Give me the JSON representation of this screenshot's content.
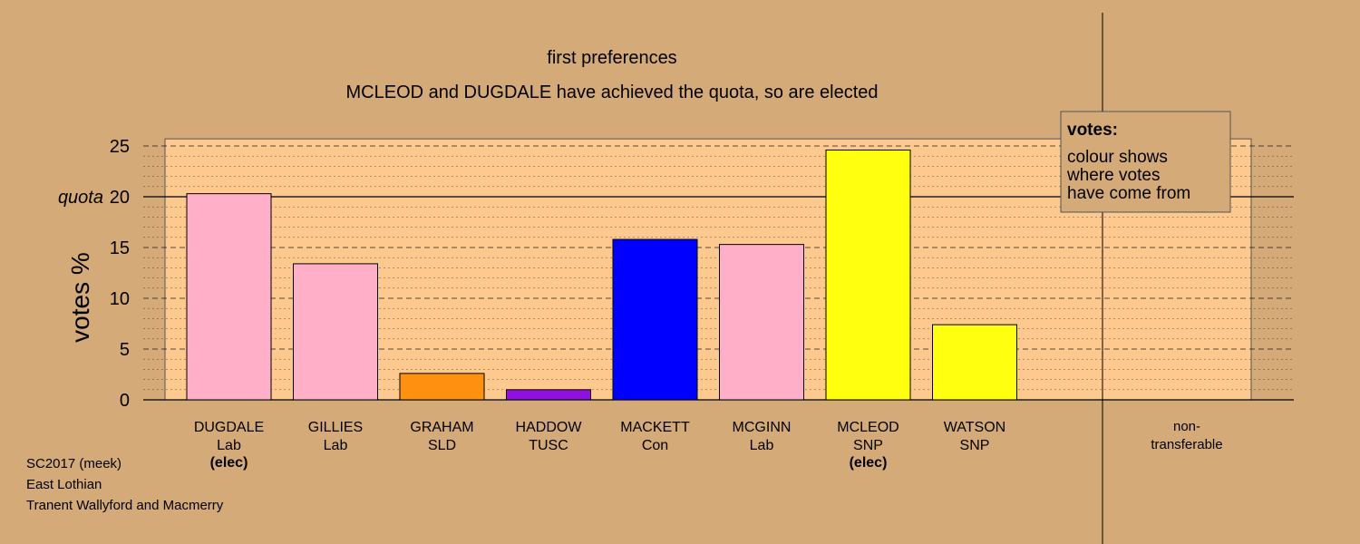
{
  "chart_data": {
    "type": "bar",
    "title": "first preferences",
    "subtitle": "MCLEOD and DUGDALE have achieved the quota, so are elected",
    "ylabel": "votes %",
    "quota_label": "quota",
    "quota": 20,
    "ylim": [
      0,
      25.7
    ],
    "yticks": [
      0,
      5,
      10,
      15,
      20,
      25
    ],
    "grid": true,
    "categories": [
      {
        "name": "DUGDALE",
        "party": "Lab",
        "note": "(elec)",
        "value": 20.3,
        "color": "#ffb0c8"
      },
      {
        "name": "GILLIES",
        "party": "Lab",
        "note": "",
        "value": 13.4,
        "color": "#ffb0c8"
      },
      {
        "name": "GRAHAM",
        "party": "SLD",
        "note": "",
        "value": 2.6,
        "color": "#ff9010"
      },
      {
        "name": "HADDOW",
        "party": "TUSC",
        "note": "",
        "value": 1.0,
        "color": "#9010e0"
      },
      {
        "name": "MACKETT",
        "party": "Con",
        "note": "",
        "value": 15.8,
        "color": "#0000ff"
      },
      {
        "name": "MCGINN",
        "party": "Lab",
        "note": "",
        "value": 15.3,
        "color": "#ffb0c8"
      },
      {
        "name": "MCLEOD",
        "party": "SNP",
        "note": "(elec)",
        "value": 24.6,
        "color": "#ffff10"
      },
      {
        "name": "WATSON",
        "party": "SNP",
        "note": "",
        "value": 7.4,
        "color": "#ffff10"
      }
    ],
    "nontransferable": {
      "line1": "non-",
      "line2": "transferable",
      "value": 0
    },
    "legend": {
      "title": "votes:",
      "lines": [
        "colour shows",
        "where votes",
        "have come from"
      ],
      "placement": "top-right"
    },
    "colors": {
      "background": "#d4aa78",
      "plot_panel": "#fdc98e"
    }
  },
  "footer": {
    "line1": "SC2017 (meek)",
    "line2": "East Lothian",
    "line3": "Tranent Wallyford and Macmerry"
  }
}
